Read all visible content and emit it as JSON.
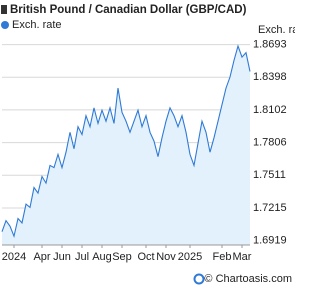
{
  "chart_data": {
    "type": "area",
    "title": "British Pound / Canadian Dollar (GBP/CAD)",
    "y_axis_label": "Exch. rate",
    "footer": "© Chartoasis.com",
    "legend_position": "top-left",
    "grid": true,
    "series": [
      {
        "name": "Exch. rate",
        "color": "#2f7ad6",
        "fill": "#e3f1fc",
        "values": [
          1.7,
          1.71,
          1.705,
          1.696,
          1.712,
          1.708,
          1.725,
          1.722,
          1.74,
          1.735,
          1.75,
          1.744,
          1.76,
          1.758,
          1.77,
          1.758,
          1.772,
          1.79,
          1.775,
          1.795,
          1.788,
          1.805,
          1.795,
          1.812,
          1.798,
          1.81,
          1.8,
          1.812,
          1.798,
          1.83,
          1.808,
          1.8,
          1.79,
          1.8,
          1.81,
          1.795,
          1.805,
          1.79,
          1.782,
          1.768,
          1.785,
          1.8,
          1.812,
          1.805,
          1.795,
          1.805,
          1.79,
          1.77,
          1.76,
          1.78,
          1.8,
          1.79,
          1.772,
          1.785,
          1.8,
          1.815,
          1.83,
          1.84,
          1.855,
          1.868,
          1.858,
          1.862,
          1.845
        ]
      }
    ],
    "xlim": [
      0,
      62
    ],
    "xticks": [
      {
        "value": 3,
        "label": "2024"
      },
      {
        "value": 10,
        "label": "Apr"
      },
      {
        "value": 15,
        "label": "Jun"
      },
      {
        "value": 20,
        "label": "Jul"
      },
      {
        "value": 25,
        "label": "Aug"
      },
      {
        "value": 30,
        "label": "Sep"
      },
      {
        "value": 36,
        "label": "Oct"
      },
      {
        "value": 41,
        "label": "Nov"
      },
      {
        "value": 47,
        "label": "2025"
      },
      {
        "value": 55,
        "label": "Feb"
      },
      {
        "value": 60,
        "label": "Mar"
      }
    ],
    "ylim": [
      1.688,
      1.878
    ],
    "yticks": [
      1.6919,
      1.7215,
      1.7511,
      1.7806,
      1.8102,
      1.8398,
      1.8693
    ]
  }
}
